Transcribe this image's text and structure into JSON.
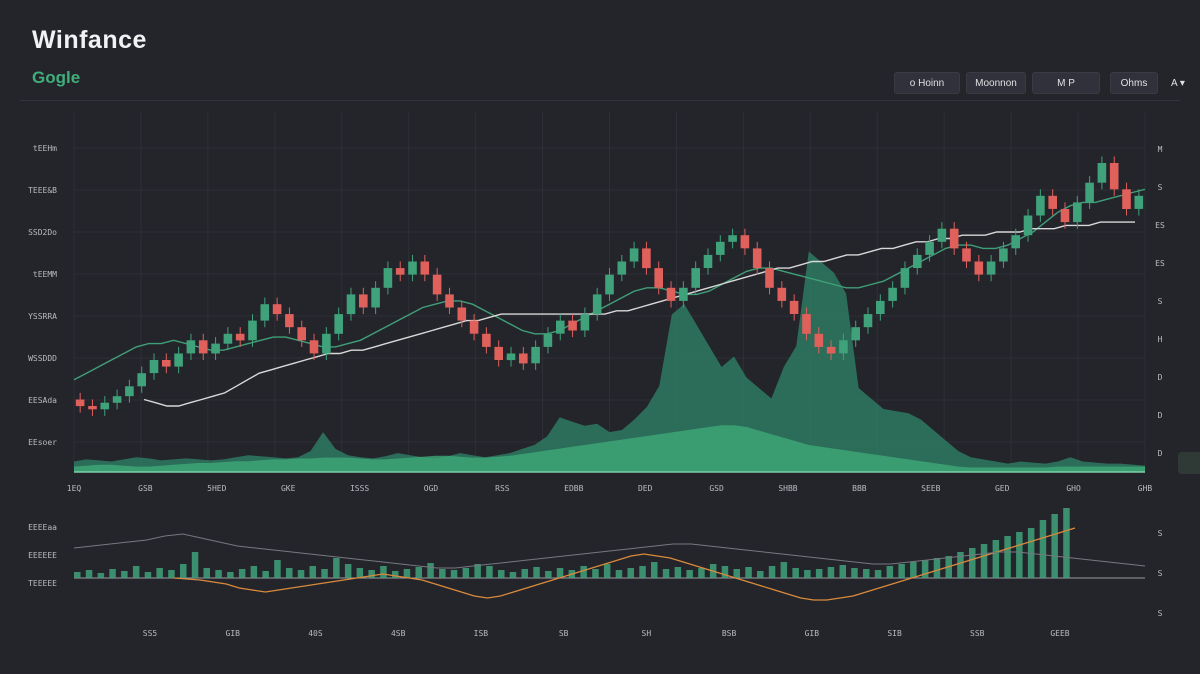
{
  "header": {
    "app_title": "Winfance",
    "ticker": "Gogle"
  },
  "toolbar": {
    "items": [
      {
        "label": "o Hoinn"
      },
      {
        "label": "Moonnon"
      },
      {
        "label": "M P"
      },
      {
        "label": "Ohms"
      },
      {
        "label": "A ▾"
      }
    ]
  },
  "colors": {
    "background": "#24252b",
    "up": "#3fa27a",
    "down": "#e0605c",
    "area": "#3fae7a",
    "ma_line": "#d8d8d8",
    "ema_line": "#3f9f78",
    "oscillator_down": "#d98a3c"
  },
  "chart_data": [
    {
      "type": "candlestick",
      "title": "",
      "y_tick_labels": [
        "tEEHm",
        "TEEE&B",
        "SSD2Do",
        "tEEMM",
        "YSSRRA",
        "WSSDDD",
        "EESAda",
        "EEsoer"
      ],
      "x_tick_labels": [
        "1EQ",
        "GSB",
        "5HED",
        "GKE",
        "ISSS",
        "OGD",
        "RSS",
        "EDBB",
        "DED",
        "GSD",
        "SHBB",
        "BBB",
        "SEEB",
        "GED",
        "GHO",
        "GHB"
      ],
      "right_labels": [
        "M",
        "S",
        "ES",
        "ES",
        "S",
        "H",
        "D",
        "D",
        "D"
      ],
      "candles": [
        {
          "o": 46,
          "c": 44
        },
        {
          "o": 44,
          "c": 43
        },
        {
          "o": 43,
          "c": 45
        },
        {
          "o": 45,
          "c": 47
        },
        {
          "o": 47,
          "c": 50
        },
        {
          "o": 50,
          "c": 54
        },
        {
          "o": 54,
          "c": 58
        },
        {
          "o": 58,
          "c": 56
        },
        {
          "o": 56,
          "c": 60
        },
        {
          "o": 60,
          "c": 64
        },
        {
          "o": 64,
          "c": 60
        },
        {
          "o": 60,
          "c": 63
        },
        {
          "o": 63,
          "c": 66
        },
        {
          "o": 66,
          "c": 64
        },
        {
          "o": 64,
          "c": 70
        },
        {
          "o": 70,
          "c": 75
        },
        {
          "o": 75,
          "c": 72
        },
        {
          "o": 72,
          "c": 68
        },
        {
          "o": 68,
          "c": 64
        },
        {
          "o": 64,
          "c": 60
        },
        {
          "o": 60,
          "c": 66
        },
        {
          "o": 66,
          "c": 72
        },
        {
          "o": 72,
          "c": 78
        },
        {
          "o": 78,
          "c": 74
        },
        {
          "o": 74,
          "c": 80
        },
        {
          "o": 80,
          "c": 86
        },
        {
          "o": 86,
          "c": 84
        },
        {
          "o": 84,
          "c": 88
        },
        {
          "o": 88,
          "c": 84
        },
        {
          "o": 84,
          "c": 78
        },
        {
          "o": 78,
          "c": 74
        },
        {
          "o": 74,
          "c": 70
        },
        {
          "o": 70,
          "c": 66
        },
        {
          "o": 66,
          "c": 62
        },
        {
          "o": 62,
          "c": 58
        },
        {
          "o": 58,
          "c": 60
        },
        {
          "o": 60,
          "c": 57
        },
        {
          "o": 57,
          "c": 62
        },
        {
          "o": 62,
          "c": 66
        },
        {
          "o": 66,
          "c": 70
        },
        {
          "o": 70,
          "c": 67
        },
        {
          "o": 67,
          "c": 72
        },
        {
          "o": 72,
          "c": 78
        },
        {
          "o": 78,
          "c": 84
        },
        {
          "o": 84,
          "c": 88
        },
        {
          "o": 88,
          "c": 92
        },
        {
          "o": 92,
          "c": 86
        },
        {
          "o": 86,
          "c": 80
        },
        {
          "o": 80,
          "c": 76
        },
        {
          "o": 76,
          "c": 80
        },
        {
          "o": 80,
          "c": 86
        },
        {
          "o": 86,
          "c": 90
        },
        {
          "o": 90,
          "c": 94
        },
        {
          "o": 94,
          "c": 96
        },
        {
          "o": 96,
          "c": 92
        },
        {
          "o": 92,
          "c": 86
        },
        {
          "o": 86,
          "c": 80
        },
        {
          "o": 80,
          "c": 76
        },
        {
          "o": 76,
          "c": 72
        },
        {
          "o": 72,
          "c": 66
        },
        {
          "o": 66,
          "c": 62
        },
        {
          "o": 62,
          "c": 60
        },
        {
          "o": 60,
          "c": 64
        },
        {
          "o": 64,
          "c": 68
        },
        {
          "o": 68,
          "c": 72
        },
        {
          "o": 72,
          "c": 76
        },
        {
          "o": 76,
          "c": 80
        },
        {
          "o": 80,
          "c": 86
        },
        {
          "o": 86,
          "c": 90
        },
        {
          "o": 90,
          "c": 94
        },
        {
          "o": 94,
          "c": 98
        },
        {
          "o": 98,
          "c": 92
        },
        {
          "o": 92,
          "c": 88
        },
        {
          "o": 88,
          "c": 84
        },
        {
          "o": 84,
          "c": 88
        },
        {
          "o": 88,
          "c": 92
        },
        {
          "o": 92,
          "c": 96
        },
        {
          "o": 96,
          "c": 102
        },
        {
          "o": 102,
          "c": 108
        },
        {
          "o": 108,
          "c": 104
        },
        {
          "o": 104,
          "c": 100
        },
        {
          "o": 100,
          "c": 106
        },
        {
          "o": 106,
          "c": 112
        },
        {
          "o": 112,
          "c": 118
        },
        {
          "o": 118,
          "c": 110
        },
        {
          "o": 110,
          "c": 104
        },
        {
          "o": 104,
          "c": 108
        }
      ],
      "ma_line": [
        46,
        45,
        44,
        44,
        45,
        46,
        47,
        48,
        50,
        52,
        54,
        55,
        56,
        57,
        58,
        59,
        60,
        60,
        61,
        61,
        62,
        63,
        64,
        65,
        66,
        67,
        68,
        69,
        70,
        70,
        71,
        72,
        72,
        72,
        72,
        72,
        72,
        72,
        72,
        72,
        72,
        73,
        73,
        74,
        75,
        76,
        77,
        78,
        79,
        80,
        81,
        82,
        83,
        84,
        85,
        86,
        86,
        87,
        88,
        88,
        89,
        90,
        90,
        91,
        92,
        92,
        93,
        94,
        94,
        95,
        95,
        96,
        96,
        96,
        97,
        97,
        97,
        98,
        98,
        98,
        99,
        99,
        99,
        100,
        100,
        100,
        100
      ],
      "ema_line": [
        52,
        54,
        56,
        58,
        60,
        62,
        63,
        63,
        64,
        63,
        62,
        61,
        61,
        62,
        63,
        64,
        65,
        65,
        64,
        63,
        62,
        62,
        63,
        64,
        66,
        68,
        70,
        72,
        74,
        75,
        76,
        76,
        75,
        73,
        71,
        69,
        67,
        66,
        66,
        67,
        69,
        71,
        73,
        75,
        77,
        79,
        80,
        80,
        79,
        78,
        78,
        79,
        81,
        83,
        85,
        86,
        86,
        85,
        84,
        83,
        82,
        81,
        80,
        80,
        81,
        82,
        84,
        86,
        88,
        90,
        92,
        93,
        93,
        92,
        92,
        93,
        95,
        97,
        100,
        103,
        105,
        106,
        106,
        107,
        108,
        109,
        110
      ],
      "area": [
        10,
        12,
        11,
        10,
        12,
        14,
        13,
        11,
        12,
        13,
        12,
        11,
        12,
        14,
        16,
        15,
        14,
        13,
        14,
        20,
        38,
        22,
        16,
        14,
        13,
        15,
        18,
        16,
        14,
        13,
        15,
        18,
        16,
        14,
        16,
        18,
        22,
        26,
        34,
        52,
        48,
        44,
        46,
        38,
        40,
        50,
        62,
        82,
        150,
        160,
        140,
        120,
        100,
        110,
        90,
        80,
        70,
        100,
        120,
        210,
        200,
        190,
        170,
        80,
        70,
        60,
        58,
        56,
        50,
        40,
        30,
        20,
        14,
        12,
        10,
        8,
        10,
        9,
        8,
        10,
        14,
        10,
        9,
        8,
        8,
        7,
        6
      ],
      "area_fill": [
        6,
        7,
        8,
        8,
        7,
        6,
        6,
        7,
        8,
        9,
        10,
        10,
        11,
        12,
        12,
        13,
        14,
        14,
        15,
        15,
        16,
        16,
        16,
        15,
        14,
        14,
        15,
        16,
        17,
        18,
        18,
        17,
        16,
        16,
        17,
        18,
        20,
        22,
        24,
        26,
        28,
        30,
        32,
        34,
        36,
        38,
        40,
        42,
        44,
        46,
        48,
        50,
        52,
        52,
        50,
        46,
        42,
        38,
        34,
        30,
        28,
        26,
        24,
        22,
        20,
        18,
        16,
        14,
        12,
        10,
        8,
        6,
        5,
        5,
        5,
        5,
        5,
        5,
        5,
        6,
        6,
        6,
        6,
        6,
        6,
        6,
        6
      ]
    },
    {
      "type": "bar",
      "title": "",
      "y_tick_labels": [
        "EEEEaa",
        "EEEEEE",
        "TEEEEE"
      ],
      "x_tick_labels": [
        "SS5",
        "GIB",
        "40S",
        "4SB",
        "ISB",
        "SB",
        "SH",
        "BSB",
        "GIB",
        "SIB",
        "SSB",
        "GEEB"
      ],
      "right_labels": [
        "S",
        "S",
        "S"
      ],
      "volume": [
        6,
        8,
        5,
        9,
        7,
        12,
        6,
        10,
        8,
        14,
        26,
        10,
        8,
        6,
        9,
        12,
        7,
        18,
        10,
        8,
        12,
        9,
        20,
        14,
        10,
        8,
        12,
        7,
        9,
        11,
        15,
        9,
        8,
        10,
        14,
        12,
        8,
        6,
        9,
        11,
        7,
        10,
        8,
        12,
        9,
        14,
        8,
        10,
        12,
        16,
        9,
        11,
        8,
        10,
        14,
        12,
        9,
        11,
        7,
        12,
        16,
        10,
        8,
        9,
        11,
        13,
        10,
        9,
        8,
        12,
        14,
        16,
        18,
        20,
        22,
        26,
        30,
        34,
        38,
        42,
        46,
        50,
        58,
        64,
        70
      ],
      "oscillator": [
        0,
        -1,
        -2,
        -4,
        -6,
        -10,
        -12,
        -14,
        -12,
        -10,
        -8,
        -6,
        -4,
        -2,
        0,
        2,
        4,
        2,
        0,
        -2,
        -6,
        -10,
        -14,
        -18,
        -20,
        -18,
        -14,
        -10,
        -6,
        -2,
        2,
        6,
        10,
        14,
        18,
        22,
        24,
        22,
        20,
        16,
        12,
        8,
        4,
        0,
        -4,
        -8,
        -12,
        -16,
        -20,
        -22,
        -22,
        -20,
        -18,
        -14,
        -10,
        -6,
        -2,
        2,
        6,
        10,
        14,
        18,
        22,
        26,
        30,
        34,
        38,
        42,
        46,
        50
      ],
      "signal_line": [
        30,
        32,
        34,
        36,
        38,
        42,
        44,
        40,
        36,
        32,
        30,
        28,
        26,
        24,
        22,
        20,
        18,
        16,
        14,
        12,
        10,
        10,
        12,
        14,
        16,
        18,
        20,
        22,
        24,
        26,
        28,
        30,
        32,
        34,
        34,
        32,
        30,
        28,
        26,
        24,
        22,
        20,
        18,
        16,
        14,
        14,
        16,
        18,
        20,
        22,
        24,
        26,
        26,
        24,
        22,
        20,
        18,
        16,
        14,
        12
      ]
    }
  ]
}
